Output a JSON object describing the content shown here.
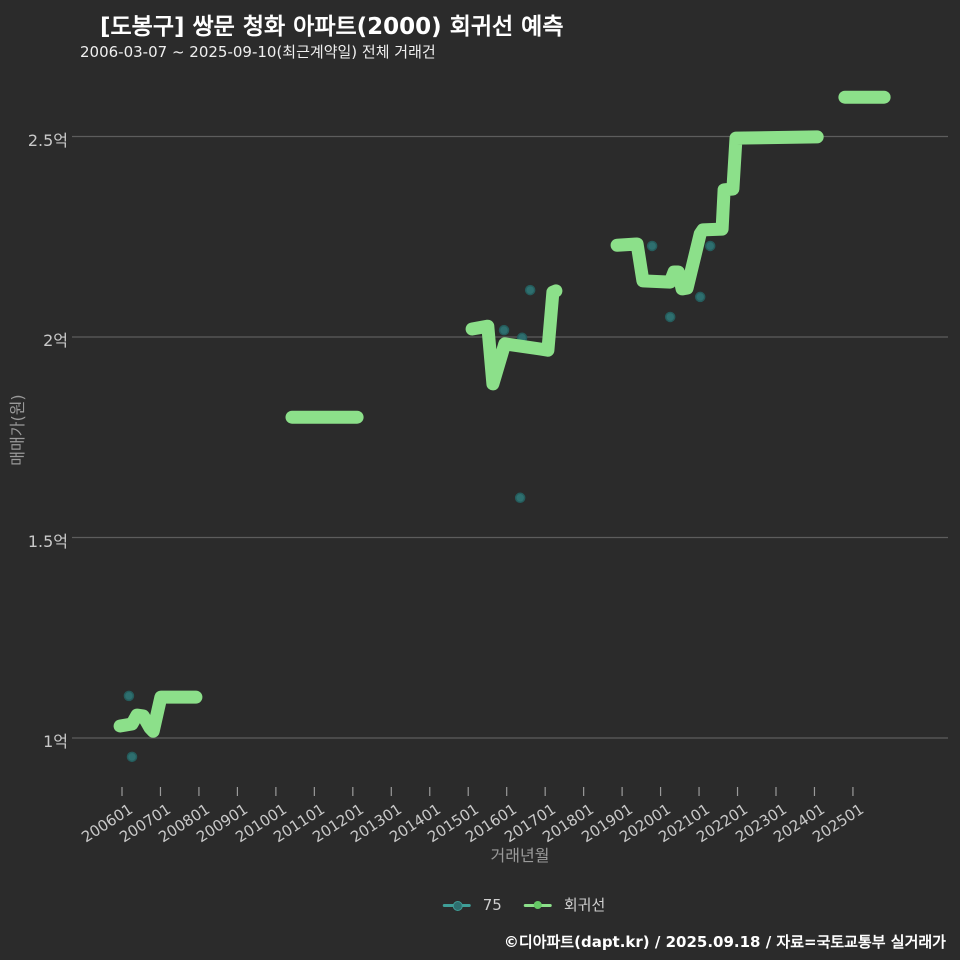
{
  "header": {
    "title": "[도봉구] 쌍문 청화 아파트(2000) 회귀선 예측",
    "subtitle": "2006-03-07 ~ 2025-09-10(최근계약일) 전체 거래건"
  },
  "footer": {
    "credit": "©디아파트(dapt.kr) / 2025.09.18 / 자료=국토교통부 실거래가"
  },
  "colors": {
    "background": "#2b2b2b",
    "grid": "#5d5d5d",
    "tick_mark": "#9a9a9a",
    "tick_label": "#c9c9c9",
    "axis_title": "#9a9a9a",
    "title_text": "#ffffff",
    "regression_green": "#8ce08a",
    "scatter_teal_fill": "#2e6f6f",
    "scatter_teal_edge": "#255c5c",
    "legend_teal_line": "#3f9e97",
    "legend_green_dot": "#66c966"
  },
  "legend": {
    "items": [
      {
        "label": "75",
        "marker": "teal-scatter"
      },
      {
        "label": "회귀선",
        "marker": "green-line"
      }
    ]
  },
  "chart_data": {
    "type": "scatter",
    "title": "[도봉구] 쌍문 청화 아파트(2000) 회귀선 예측",
    "subtitle": "2006-03-07 ~ 2025-09-10(최근계약일) 전체 거래건",
    "xlabel": "거래년월",
    "ylabel": "매매가(원)",
    "grid": true,
    "legend_position": "bottom-center",
    "x_tick_labels": [
      "200601",
      "200701",
      "200801",
      "200901",
      "201001",
      "201101",
      "201201",
      "201301",
      "201401",
      "201501",
      "201601",
      "201701",
      "201801",
      "201901",
      "202001",
      "202101",
      "202201",
      "202301",
      "202401",
      "202501"
    ],
    "y_ticks": [
      {
        "label": "1억",
        "value": 1.0
      },
      {
        "label": "1.5억",
        "value": 1.5
      },
      {
        "label": "2억",
        "value": 2.0
      },
      {
        "label": "2.5억",
        "value": 2.5
      }
    ],
    "x_range_years": [
      2005.8,
      2026.2
    ],
    "ylim_eok": [
      0.85,
      2.7
    ],
    "unit_note": "y values in 억원, x values as decimal year (2006.0 = 200601)",
    "series": [
      {
        "name": "75",
        "type": "scatter",
        "points": [
          [
            2006.18,
            1.105
          ],
          [
            2006.26,
            0.953
          ],
          [
            2015.93,
            2.017
          ],
          [
            2016.35,
            1.599
          ],
          [
            2016.4,
            1.998
          ],
          [
            2016.61,
            2.117
          ],
          [
            2019.78,
            2.227
          ],
          [
            2020.25,
            2.05
          ],
          [
            2021.03,
            2.1
          ],
          [
            2021.29,
            2.227
          ]
        ]
      },
      {
        "name": "회귀선",
        "type": "line",
        "segments": [
          [
            [
              2005.95,
              1.03
            ],
            [
              2006.26,
              1.035
            ],
            [
              2006.39,
              1.057
            ],
            [
              2006.55,
              1.055
            ],
            [
              2006.73,
              1.025
            ],
            [
              2006.81,
              1.017
            ],
            [
              2007.01,
              1.102
            ],
            [
              2007.92,
              1.102
            ]
          ],
          [
            [
              2010.42,
              1.8
            ],
            [
              2012.11,
              1.8
            ]
          ],
          [
            [
              2015.1,
              2.02
            ],
            [
              2015.51,
              2.027
            ],
            [
              2015.64,
              1.883
            ],
            [
              2015.95,
              1.983
            ],
            [
              2016.87,
              1.97
            ],
            [
              2017.07,
              1.967
            ],
            [
              2017.2,
              2.112
            ],
            [
              2017.28,
              2.115
            ]
          ],
          [
            [
              2018.87,
              2.229
            ],
            [
              2019.39,
              2.232
            ],
            [
              2019.54,
              2.14
            ],
            [
              2020.25,
              2.137
            ],
            [
              2020.35,
              2.162
            ],
            [
              2020.46,
              2.162
            ],
            [
              2020.56,
              2.12
            ],
            [
              2020.69,
              2.122
            ],
            [
              2021.03,
              2.257
            ],
            [
              2021.1,
              2.267
            ],
            [
              2021.6,
              2.269
            ],
            [
              2021.65,
              2.367
            ],
            [
              2021.88,
              2.369
            ],
            [
              2021.96,
              2.496
            ],
            [
              2024.07,
              2.499
            ]
          ],
          [
            [
              2024.79,
              2.598
            ],
            [
              2025.81,
              2.598
            ]
          ]
        ]
      }
    ]
  }
}
